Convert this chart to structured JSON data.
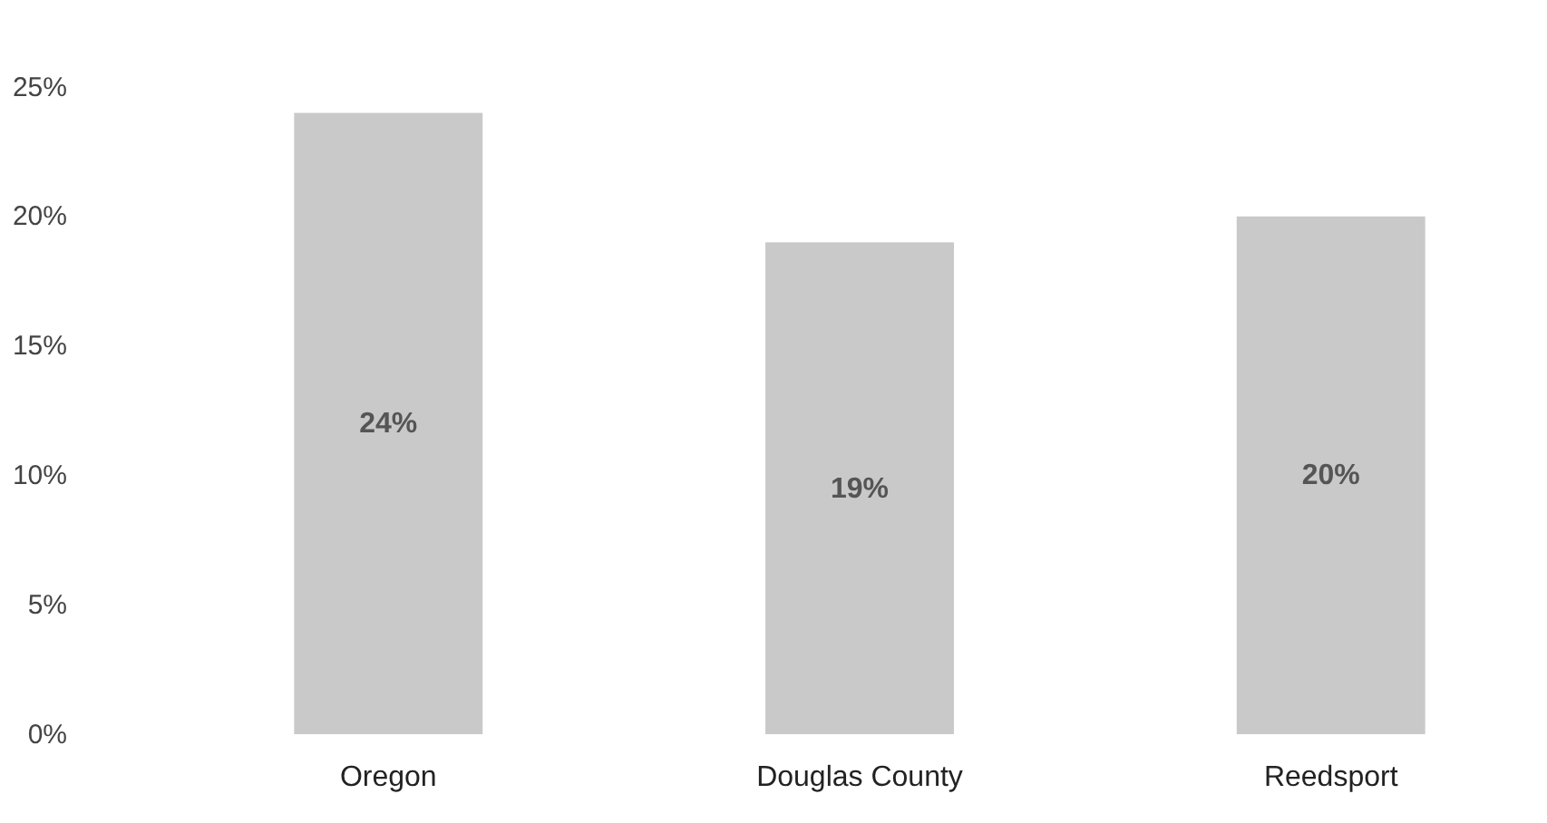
{
  "chart_data": {
    "type": "bar",
    "categories": [
      "Oregon",
      "Douglas County",
      "Reedsport"
    ],
    "values": [
      24,
      19,
      20
    ],
    "color": "#c9c9c9",
    "value_labels": [
      "24%",
      "19%",
      "20%"
    ],
    "ylim": [
      0,
      25
    ],
    "yticks": [
      {
        "value": 0,
        "label": "0%"
      },
      {
        "value": 5,
        "label": "5%"
      },
      {
        "value": 10,
        "label": "10%"
      },
      {
        "value": 15,
        "label": "15%"
      },
      {
        "value": 20,
        "label": "20%"
      },
      {
        "value": 25,
        "label": "25%"
      }
    ],
    "grid": false
  }
}
